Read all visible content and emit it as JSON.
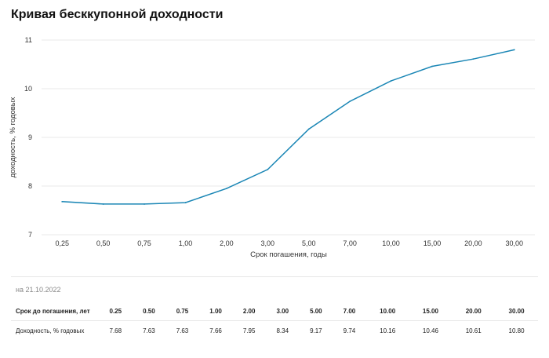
{
  "title": "Кривая бесккупонной доходности",
  "as_of": "на 21.10.2022",
  "table": {
    "header_label": "Срок до погашения, лет",
    "header_values": [
      "0.25",
      "0.50",
      "0.75",
      "1.00",
      "2.00",
      "3.00",
      "5.00",
      "7.00",
      "10.00",
      "15.00",
      "20.00",
      "30.00"
    ],
    "row_label": "Доходность, % годовых",
    "row_values": [
      "7.68",
      "7.63",
      "7.63",
      "7.66",
      "7.95",
      "8.34",
      "9.17",
      "9.74",
      "10.16",
      "10.46",
      "10.61",
      "10.80"
    ]
  },
  "colors": {
    "line": "#1a86b5",
    "grid": "#e9e9e9"
  },
  "chart_data": {
    "type": "line",
    "title": "Кривая бесккупонной доходности",
    "xlabel": "Срок погашения, годы",
    "ylabel": "доходность, % годовых",
    "categories": [
      "0,25",
      "0,50",
      "0,75",
      "1,00",
      "2,00",
      "3,00",
      "5,00",
      "7,00",
      "10,00",
      "15,00",
      "20,00",
      "30,00"
    ],
    "values": [
      7.68,
      7.63,
      7.63,
      7.66,
      7.95,
      8.34,
      9.17,
      9.74,
      10.16,
      10.46,
      10.61,
      10.8
    ],
    "yticks": [
      7,
      8,
      9,
      10,
      11
    ],
    "ylim": [
      7,
      11
    ],
    "grid": "horizontal"
  }
}
